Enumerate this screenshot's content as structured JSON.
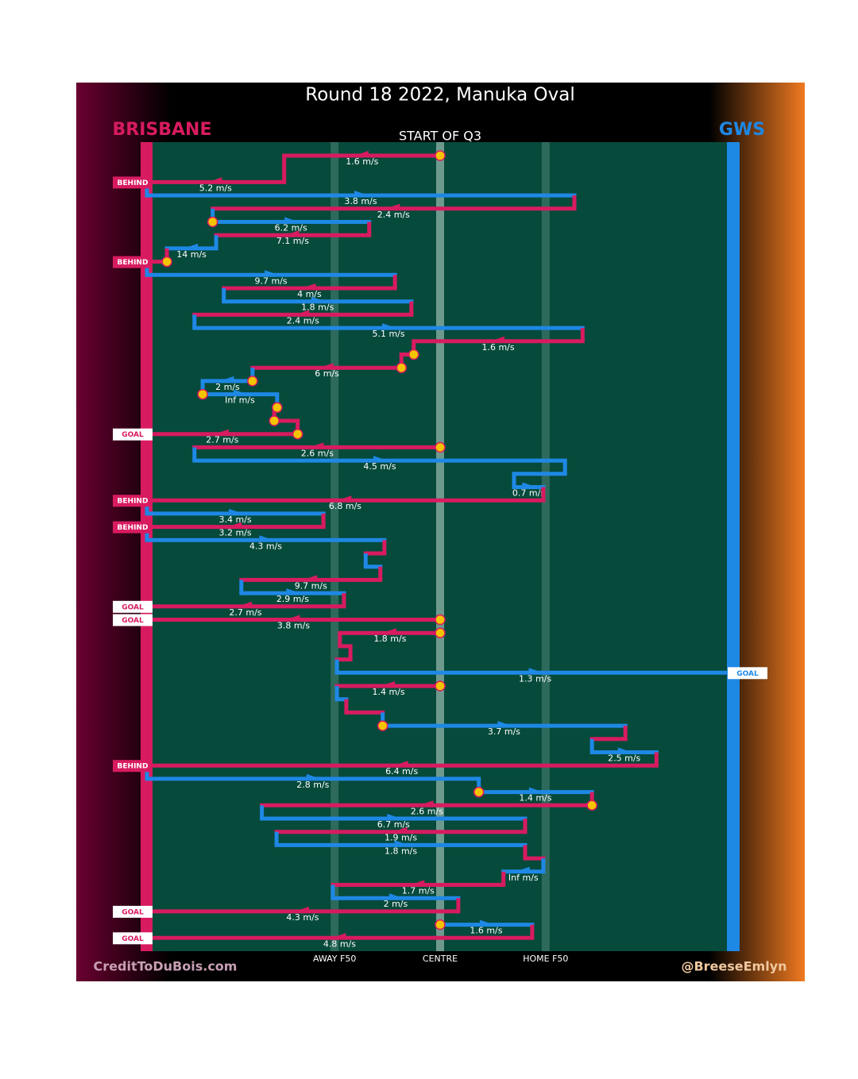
{
  "chart_data": {
    "type": "chain",
    "title": "Round 18 2022, Manuka Oval",
    "subtitle": "START OF Q3",
    "teams": [
      {
        "name": "BRISBANE",
        "color": "#d81b60"
      },
      {
        "name": "GWS",
        "color": "#1e88e5"
      }
    ],
    "xlim": [
      0,
      100
    ],
    "xticks": [
      {
        "value": 32,
        "label": "AWAY F50"
      },
      {
        "value": 50,
        "label": "CENTRE"
      },
      {
        "value": 68,
        "label": "HOME F50"
      }
    ],
    "credits": [
      "CreditToDuBois.com",
      "@BreeseEmlyn"
    ],
    "moves": [
      {
        "team": 0,
        "row": 0,
        "from": 50,
        "to": 23.4,
        "speed": "1.6 m/s"
      },
      {
        "team": 0,
        "row": 2,
        "from": 23.4,
        "to": 0,
        "speed": "5.2 m/s"
      },
      {
        "team": 1,
        "row": 3,
        "from": 0,
        "to": 72.9,
        "speed": "3.8 m/s"
      },
      {
        "team": 0,
        "row": 4,
        "from": 72.9,
        "to": 11.2,
        "speed": "2.4 m/s"
      },
      {
        "team": 1,
        "row": 5,
        "from": 11.2,
        "to": 37.9,
        "speed": "6.2 m/s"
      },
      {
        "team": 0,
        "row": 6,
        "from": 37.9,
        "to": 11.8,
        "speed": "7.1 m/s"
      },
      {
        "team": 1,
        "row": 7,
        "from": 11.8,
        "to": 3.4,
        "speed": "14 m/s"
      },
      {
        "team": 0,
        "row": 8,
        "from": 3.4,
        "to": 0
      },
      {
        "team": 1,
        "row": 9,
        "from": 0,
        "to": 42.3,
        "speed": "9.7 m/s"
      },
      {
        "team": 0,
        "row": 10,
        "from": 42.3,
        "to": 13.1,
        "speed": "4 m/s"
      },
      {
        "team": 1,
        "row": 11,
        "from": 13.1,
        "to": 45.1,
        "speed": "1.8 m/s"
      },
      {
        "team": 0,
        "row": 12,
        "from": 45.1,
        "to": 8.1,
        "speed": "2.4 m/s"
      },
      {
        "team": 1,
        "row": 13,
        "from": 8.1,
        "to": 74.3,
        "speed": "5.1 m/s"
      },
      {
        "team": 0,
        "row": 14,
        "from": 74.3,
        "to": 45.5,
        "speed": "1.6 m/s"
      },
      {
        "team": 0,
        "row": 15,
        "from": 45.5,
        "to": 43.4
      },
      {
        "team": 0,
        "row": 16,
        "from": 43.4,
        "to": 18.0,
        "speed": "6 m/s"
      },
      {
        "team": 1,
        "row": 17,
        "from": 18.0,
        "to": 9.5,
        "speed": "2 m/s"
      },
      {
        "team": 1,
        "row": 18,
        "from": 9.5,
        "to": 22.2,
        "speed": "Inf m/s"
      },
      {
        "team": 1,
        "row": 19,
        "from": 22.2,
        "to": 21.7
      },
      {
        "team": 0,
        "row": 20,
        "from": 21.7,
        "to": 25.7
      },
      {
        "team": 0,
        "row": 21,
        "from": 25.7,
        "to": 0,
        "speed": "2.7 m/s"
      },
      {
        "team": 0,
        "row": 22,
        "from": 50,
        "to": 8.1,
        "speed": "2.6 m/s"
      },
      {
        "team": 1,
        "row": 23,
        "from": 8.1,
        "to": 71.3,
        "speed": "4.5 m/s"
      },
      {
        "team": 1,
        "row": 24,
        "from": 71.3,
        "to": 62.6
      },
      {
        "team": 1,
        "row": 25,
        "from": 62.6,
        "to": 67.6,
        "speed": "0.7 m/s"
      },
      {
        "team": 0,
        "row": 26,
        "from": 67.6,
        "to": 0,
        "speed": "6.8 m/s"
      },
      {
        "team": 1,
        "row": 27,
        "from": 0,
        "to": 30.1,
        "speed": "3.4 m/s"
      },
      {
        "team": 0,
        "row": 28,
        "from": 30.1,
        "to": 0,
        "speed": "3.2 m/s"
      },
      {
        "team": 1,
        "row": 29,
        "from": 0,
        "to": 40.5,
        "speed": "4.3 m/s"
      },
      {
        "team": 0,
        "row": 30,
        "from": 40.5,
        "to": 37.3
      },
      {
        "team": 1,
        "row": 31,
        "from": 37.3,
        "to": 39.8
      },
      {
        "team": 0,
        "row": 32,
        "from": 39.8,
        "to": 16.1,
        "speed": "9.7 m/s"
      },
      {
        "team": 1,
        "row": 33,
        "from": 16.1,
        "to": 33.6,
        "speed": "2.9 m/s"
      },
      {
        "team": 0,
        "row": 34,
        "from": 33.6,
        "to": 0,
        "speed": "2.7 m/s"
      },
      {
        "team": 0,
        "row": 35,
        "from": 50,
        "to": 0,
        "speed": "3.8 m/s"
      },
      {
        "team": 0,
        "row": 36,
        "from": 50,
        "to": 32.9,
        "speed": "1.8 m/s"
      },
      {
        "team": 0,
        "row": 37,
        "from": 32.9,
        "to": 34.7
      },
      {
        "team": 0,
        "row": 38,
        "from": 34.7,
        "to": 32.4
      },
      {
        "team": 1,
        "row": 39,
        "from": 32.4,
        "to": 100,
        "speed": "1.3 m/s"
      },
      {
        "team": 0,
        "row": 40,
        "from": 50,
        "to": 32.4,
        "speed": "1.4 m/s"
      },
      {
        "team": 1,
        "row": 41,
        "from": 32.4,
        "to": 34.0
      },
      {
        "team": 0,
        "row": 42,
        "from": 34.0,
        "to": 40.2
      },
      {
        "team": 1,
        "row": 43,
        "from": 40.2,
        "to": 81.6,
        "speed": "3.7 m/s"
      },
      {
        "team": 0,
        "row": 44,
        "from": 81.6,
        "to": 75.9
      },
      {
        "team": 1,
        "row": 45,
        "from": 75.9,
        "to": 86.9,
        "speed": "2.5 m/s"
      },
      {
        "team": 0,
        "row": 46,
        "from": 86.9,
        "to": 0,
        "speed": "6.4 m/s"
      },
      {
        "team": 1,
        "row": 47,
        "from": 0,
        "to": 56.6,
        "speed": "2.8 m/s"
      },
      {
        "team": 1,
        "row": 48,
        "from": 56.6,
        "to": 75.9,
        "speed": "1.4 m/s"
      },
      {
        "team": 0,
        "row": 49,
        "from": 75.9,
        "to": 19.6,
        "speed": "2.6 m/s"
      },
      {
        "team": 1,
        "row": 50,
        "from": 19.6,
        "to": 64.5,
        "speed": "6.7 m/s"
      },
      {
        "team": 0,
        "row": 51,
        "from": 64.5,
        "to": 22.1,
        "speed": "1.9 m/s"
      },
      {
        "team": 1,
        "row": 52,
        "from": 22.1,
        "to": 64.5,
        "speed": "1.8 m/s"
      },
      {
        "team": 0,
        "row": 53,
        "from": 64.5,
        "to": 67.6
      },
      {
        "team": 1,
        "row": 54,
        "from": 67.6,
        "to": 60.8,
        "speed": "Inf m/s"
      },
      {
        "team": 0,
        "row": 55,
        "from": 60.8,
        "to": 31.7,
        "speed": "1.7 m/s"
      },
      {
        "team": 1,
        "row": 56,
        "from": 31.7,
        "to": 53.1,
        "speed": "2 m/s"
      },
      {
        "team": 0,
        "row": 57,
        "from": 53.1,
        "to": 0,
        "speed": "4.3 m/s"
      },
      {
        "team": 1,
        "row": 58,
        "from": 50,
        "to": 65.7,
        "speed": "1.6 m/s"
      },
      {
        "team": 0,
        "row": 59,
        "from": 65.7,
        "to": 0,
        "speed": "4.8 m/s"
      }
    ],
    "stoppages": [
      {
        "row": 0,
        "x": 50
      },
      {
        "row": 5,
        "x": 11.2
      },
      {
        "row": 8,
        "x": 3.4
      },
      {
        "row": 15,
        "x": 45.5
      },
      {
        "row": 16,
        "x": 43.4
      },
      {
        "row": 17,
        "x": 18.0
      },
      {
        "row": 18,
        "x": 9.5
      },
      {
        "row": 19,
        "x": 22.2
      },
      {
        "row": 20,
        "x": 21.7
      },
      {
        "row": 21,
        "x": 25.7
      },
      {
        "row": 22,
        "x": 50
      },
      {
        "row": 35,
        "x": 50
      },
      {
        "row": 36,
        "x": 50
      },
      {
        "row": 40,
        "x": 50
      },
      {
        "row": 43,
        "x": 40.2
      },
      {
        "row": 48,
        "x": 56.6
      },
      {
        "row": 49,
        "x": 75.9
      },
      {
        "row": 58,
        "x": 50
      }
    ],
    "outcomes": [
      {
        "row": 2,
        "team": 0,
        "label": "BEHIND"
      },
      {
        "row": 8,
        "team": 0,
        "label": "BEHIND"
      },
      {
        "row": 21,
        "team": 0,
        "label": "GOAL"
      },
      {
        "row": 26,
        "team": 0,
        "label": "BEHIND"
      },
      {
        "row": 28,
        "team": 0,
        "label": "BEHIND"
      },
      {
        "row": 34,
        "team": 0,
        "label": "GOAL"
      },
      {
        "row": 35,
        "team": 0,
        "label": "GOAL"
      },
      {
        "row": 39,
        "team": 1,
        "label": "GOAL"
      },
      {
        "row": 46,
        "team": 0,
        "label": "BEHIND"
      },
      {
        "row": 57,
        "team": 0,
        "label": "GOAL"
      },
      {
        "row": 59,
        "team": 0,
        "label": "GOAL"
      }
    ]
  }
}
